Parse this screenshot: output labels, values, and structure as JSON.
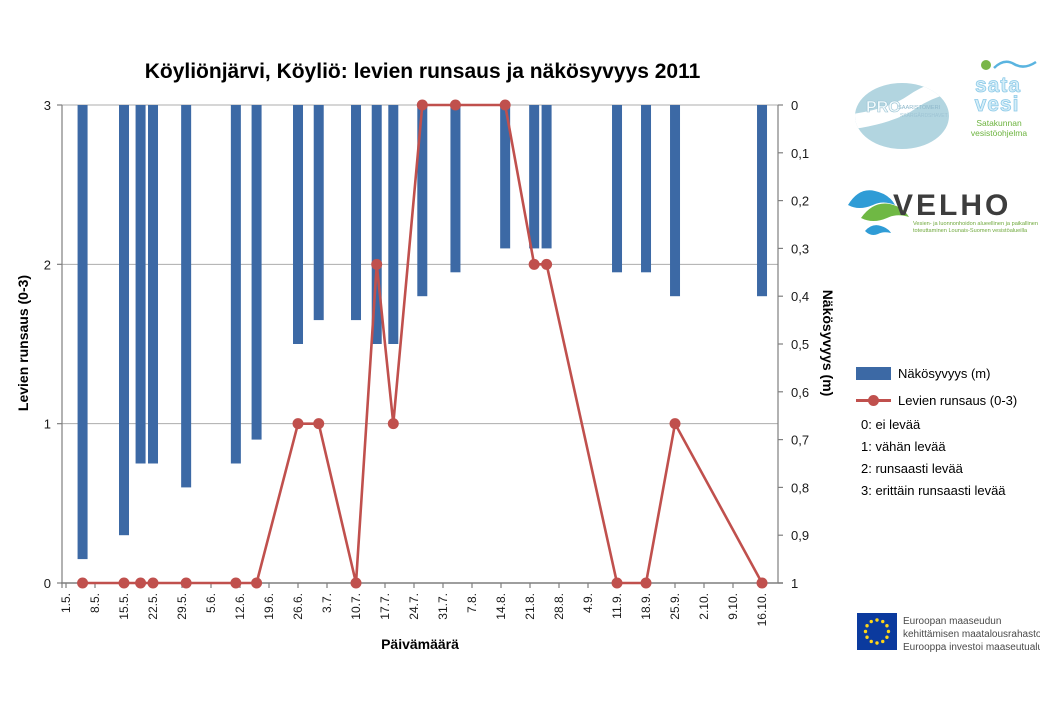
{
  "title": "Köyliönjärvi, Köyliö: levien runsaus ja näkösyvyys 2011",
  "chart_data": {
    "type": "bar",
    "subtype": "dual-axis: bars on inverted right axis + line with markers on left axis",
    "title": "Köyliönjärvi, Köyliö: levien runsaus ja näkösyvyys 2011",
    "xlabel": "Päivämäärä",
    "x_tick_labels": [
      "1.5.",
      "8.5.",
      "15.5.",
      "22.5.",
      "29.5.",
      "5.6.",
      "12.6.",
      "19.6.",
      "26.6.",
      "3.7.",
      "10.7.",
      "17.7.",
      "24.7.",
      "31.7.",
      "7.8.",
      "14.8.",
      "21.8.",
      "28.8.",
      "4.9.",
      "11.9.",
      "18.9.",
      "25.9.",
      "2.10.",
      "9.10.",
      "16.10."
    ],
    "left_axis": {
      "title": "Levien runsaus (0-3)",
      "ticks": [
        "0",
        "1",
        "2",
        "3"
      ],
      "min": 0,
      "max": 3
    },
    "right_axis": {
      "title": "Näkösyvyys (m)",
      "ticks": [
        "0",
        "0,1",
        "0,2",
        "0,3",
        "0,4",
        "0,5",
        "0,6",
        "0,7",
        "0,8",
        "0,9",
        "1"
      ],
      "min": 0,
      "max": 1,
      "inverted": true
    },
    "grid": "horizontal gridlines at left-axis 1 and 2",
    "legend_position": "right",
    "series": [
      {
        "name": "Näkösyvyys (m)",
        "type": "bar",
        "axis": "right",
        "color": "#3C69A5",
        "dates": [
          "5.5.",
          "15.5.",
          "19.5.",
          "22.5.",
          "30.5.",
          "11.6.",
          "16.6.",
          "26.6.",
          "1.7.",
          "10.7.",
          "15.7.",
          "19.7.",
          "26.7.",
          "3.8.",
          "15.8.",
          "22.8.",
          "25.8.",
          "11.9.",
          "18.9.",
          "25.9.",
          "16.10."
        ],
        "values": [
          0.95,
          0.9,
          0.75,
          0.75,
          0.8,
          0.75,
          0.7,
          0.5,
          0.45,
          0.45,
          0.5,
          0.5,
          0.4,
          0.35,
          0.3,
          0.3,
          0.3,
          0.35,
          0.35,
          0.4,
          0.4
        ]
      },
      {
        "name": "Levien runsaus (0-3)",
        "type": "line",
        "axis": "left",
        "color": "#C0504D",
        "dates": [
          "5.5.",
          "15.5.",
          "19.5.",
          "22.5.",
          "30.5.",
          "11.6.",
          "16.6.",
          "26.6.",
          "1.7.",
          "10.7.",
          "15.7.",
          "19.7.",
          "26.7.",
          "3.8.",
          "15.8.",
          "22.8.",
          "25.8.",
          "11.9.",
          "18.9.",
          "25.9.",
          "16.10."
        ],
        "values": [
          0,
          0,
          0,
          0,
          0,
          0,
          0,
          1,
          1,
          0,
          2,
          1,
          3,
          3,
          3,
          2,
          2,
          0,
          0,
          1,
          0
        ]
      }
    ]
  },
  "legend": {
    "items": [
      {
        "label": "Näkösyvyys (m)"
      },
      {
        "label": "Levien runsaus (0-3)"
      }
    ]
  },
  "notes": [
    "0: ei levää",
    "1: vähän levää",
    "2: runsaasti levää",
    "3: erittäin runsaasti levää"
  ],
  "logos": {
    "pro": {
      "name": "PRO",
      "line1": "SAARISTOMERI",
      "line2": "SKÄRGÅRDSHAVET"
    },
    "satavesi": {
      "word1": "sata",
      "word2": "vesi",
      "line1": "Satakunnan",
      "line2": "vesistöohjelma"
    },
    "velho": {
      "name": "VELHO",
      "desc1": "Vesien- ja luonnonhoidon alueellinen ja paikallinen",
      "desc2": "toteuttaminen Lounais-Suomen vesistöalueilla"
    },
    "eu": {
      "line1": "Euroopan maaseudun",
      "line2": "kehittämisen maatalousrahasto:",
      "line3": "Eurooppa investoi maaseutualueisiin"
    }
  }
}
